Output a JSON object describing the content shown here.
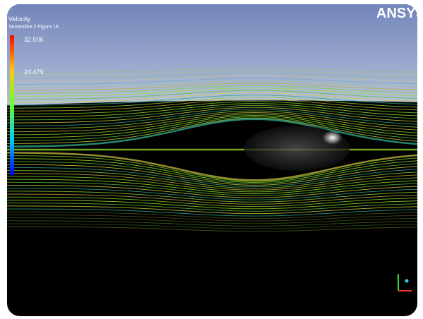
{
  "legend": {
    "title": "Velocity",
    "subtitle": "Streamline 2 Figure 16",
    "labels": [
      "32.506",
      "24.479"
    ]
  },
  "logo": "ANSYS"
}
